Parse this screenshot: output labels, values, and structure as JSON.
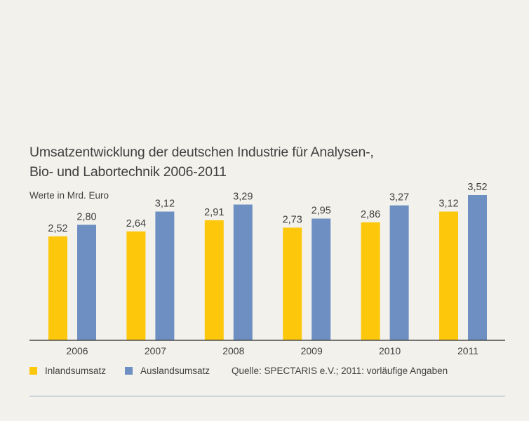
{
  "chart_data": {
    "type": "bar",
    "title": [
      "Umsatzentwicklung der deutschen Industrie für Analysen-,",
      "Bio- und Labortechnik 2006-2011"
    ],
    "unit_label": "Werte in Mrd. Euro",
    "categories": [
      "2006",
      "2007",
      "2008",
      "2009",
      "2010",
      "2011"
    ],
    "series": [
      {
        "name": "Inlandsumsatz",
        "color": "#fdc70c",
        "values": [
          2.52,
          2.64,
          2.91,
          2.73,
          2.86,
          3.12
        ],
        "labels": [
          "2,52",
          "2,64",
          "2,91",
          "2,73",
          "2,86",
          "3,12"
        ]
      },
      {
        "name": "Auslandsumsatz",
        "color": "#6d8fc2",
        "values": [
          2.8,
          3.12,
          3.29,
          2.95,
          3.27,
          3.52
        ],
        "labels": [
          "2,80",
          "3,12",
          "3,29",
          "2,95",
          "3,27",
          "3,52"
        ]
      }
    ],
    "ylim": [
      0,
      3.52
    ],
    "grid": false,
    "legend_position": "bottom-left",
    "source": "Quelle: SPECTARIS e.V.; 2011: vorläufige Angaben"
  }
}
